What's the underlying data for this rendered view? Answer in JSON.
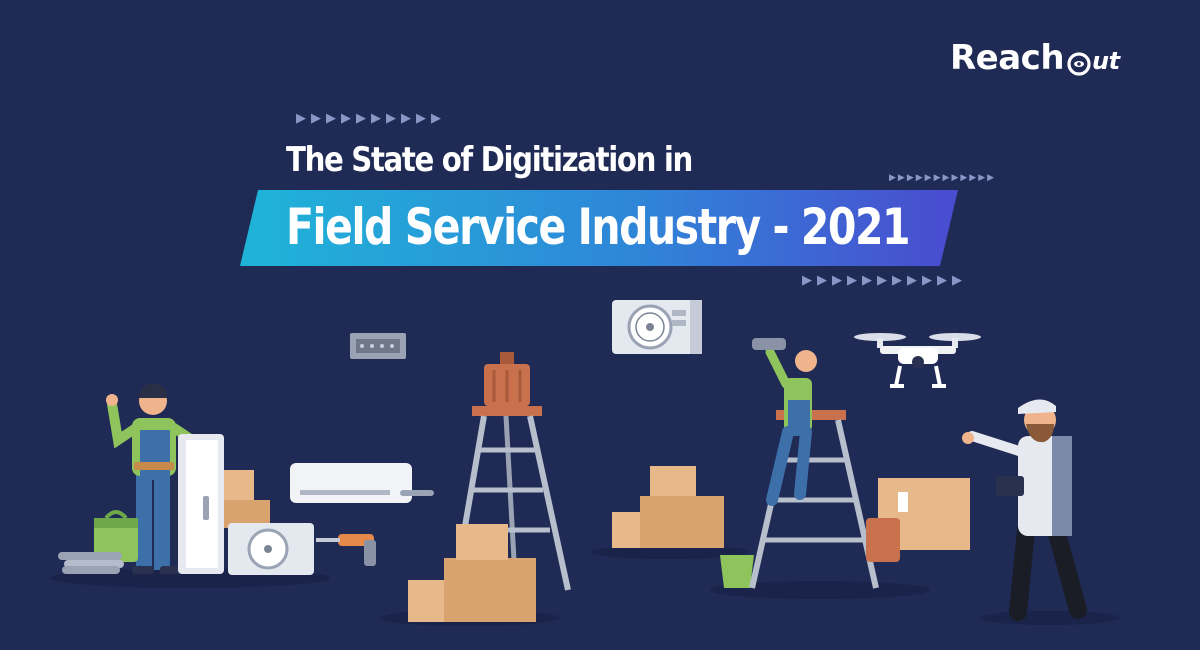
{
  "brand": {
    "logo_main": "Reach",
    "logo_suffix": "ut"
  },
  "headline": {
    "line1": "The State of Digitization in",
    "line2": "Field Service Industry - 2021"
  },
  "decor": {
    "arrows_row": "▶▶▶▶▶▶▶▶▶▶",
    "arrows_small": "▶▶▶▶▶▶▶▶▶▶▶▶",
    "arrows_row_b": "▶▶▶▶▶▶▶▶▶▶▶"
  },
  "colors": {
    "background": "#1f2a55",
    "banner_start": "#1fa9d6",
    "banner_end": "#4a4fd0",
    "box": "#e7b889",
    "worker_shirt": "#8fc35c",
    "worker_overalls": "#3d6fa8"
  },
  "icons": [
    "drone-icon",
    "air-conditioner-icon",
    "ladder-icon",
    "toolbox-icon",
    "drill-icon",
    "cardboard-box-icon"
  ]
}
